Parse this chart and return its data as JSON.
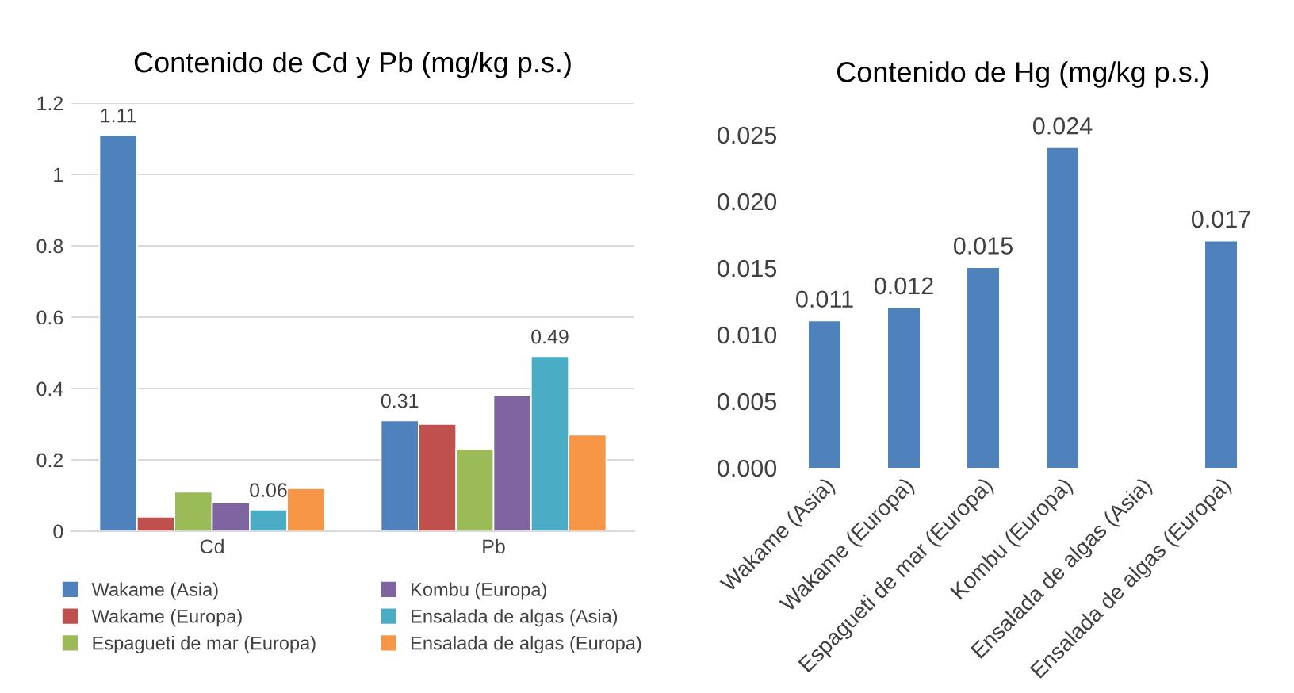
{
  "chart_data": [
    {
      "type": "bar",
      "title": "Contenido de Cd y Pb (mg/kg p.s.)",
      "categories": [
        "Cd",
        "Pb"
      ],
      "ylim": [
        0,
        1.2
      ],
      "yticks": [
        0,
        0.2,
        0.4,
        0.6,
        0.8,
        1,
        1.2
      ],
      "grid": "y",
      "legend": "bottom",
      "series": [
        {
          "name": "Wakame (Asia)",
          "color": "#4f81bd",
          "values": [
            1.11,
            0.31
          ],
          "value_labels": [
            "1.11",
            "0.31"
          ]
        },
        {
          "name": "Wakame (Europa)",
          "color": "#c0504d",
          "values": [
            0.04,
            0.3
          ]
        },
        {
          "name": "Espagueti de mar (Europa)",
          "color": "#9bbb59",
          "values": [
            0.11,
            0.23
          ]
        },
        {
          "name": "Kombu (Europa)",
          "color": "#8064a2",
          "values": [
            0.08,
            0.38
          ]
        },
        {
          "name": "Ensalada de algas (Asia)",
          "color": "#4bacc6",
          "values": [
            0.06,
            0.49
          ],
          "value_labels": [
            "0.06",
            "0.49"
          ]
        },
        {
          "name": "Ensalada de algas (Europa)",
          "color": "#f79646",
          "values": [
            0.12,
            0.27
          ]
        }
      ]
    },
    {
      "type": "bar",
      "title": "Contenido de Hg (mg/kg p.s.)",
      "categories": [
        "Wakame (Asia)",
        "Wakame (Europa)",
        "Espagueti de mar (Europa)",
        "Kombu (Europa)",
        "Ensalada de algas (Asia)",
        "Ensalada de algas (Europa)"
      ],
      "ylim": [
        0,
        0.025
      ],
      "yticks": [
        {
          "value": 0,
          "label": "0.000"
        },
        {
          "value": 0.005,
          "label": "0.005"
        },
        {
          "value": 0.01,
          "label": "0.010"
        },
        {
          "value": 0.015,
          "label": "0.015"
        },
        {
          "value": 0.02,
          "label": "0.020"
        },
        {
          "value": 0.025,
          "label": "0.025"
        }
      ],
      "color": "#4f81bd",
      "data_labels": true,
      "values": [
        0.011,
        0.012,
        0.015,
        0.024,
        null,
        0.017
      ]
    }
  ]
}
